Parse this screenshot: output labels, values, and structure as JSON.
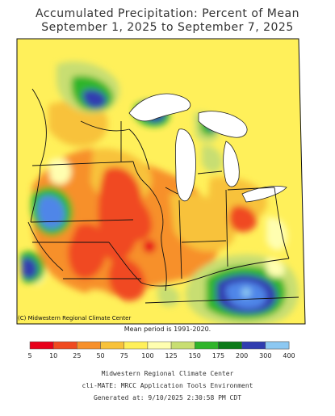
{
  "title_line1": "Accumulated Precipitation: Percent of Mean",
  "title_line2": "September 1, 2025 to September 7, 2025",
  "credit": "(C) Midwestern Regional Climate Center",
  "mean_period": "Mean period is 1991-2020.",
  "legend": {
    "labels": [
      "5",
      "10",
      "25",
      "50",
      "75",
      "100",
      "125",
      "150",
      "175",
      "200",
      "300",
      "400"
    ],
    "colors": [
      "#e8001a",
      "#f04a20",
      "#f7902b",
      "#f8c23a",
      "#fff05a",
      "#fffeb0",
      "#c8de72",
      "#2fb52a",
      "#0a7a18",
      "#303cb0",
      "#4f86e8",
      "#8cc8f2"
    ]
  },
  "footer": {
    "line1": "Midwestern Regional Climate Center",
    "line2": "cli-MATE: MRCC Application Tools Environment",
    "line3": "Generated at: 9/10/2025 2:30:58 PM CDT"
  }
}
